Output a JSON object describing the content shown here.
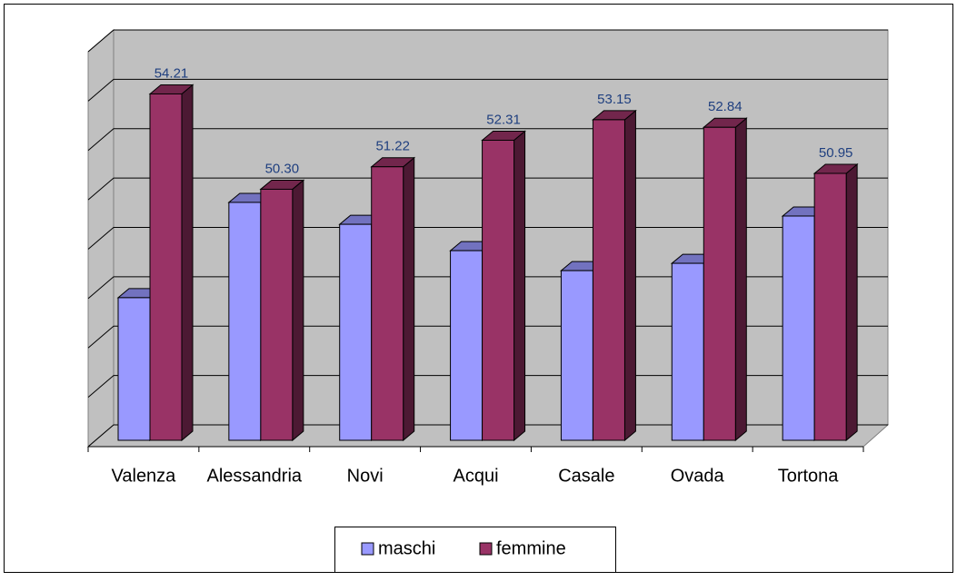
{
  "chart_data": {
    "type": "bar3d",
    "categories": [
      "Valenza",
      "Alessandria",
      "Novi",
      "Acqui",
      "Casale",
      "Ovada",
      "Tortona"
    ],
    "series": [
      {
        "name": "maschi",
        "color": "#9999ff",
        "values": [
          45.85,
          49.76,
          48.86,
          47.78,
          46.96,
          47.26,
          49.2
        ]
      },
      {
        "name": "femmine",
        "color": "#993366",
        "values": [
          54.21,
          50.3,
          51.22,
          52.31,
          53.15,
          52.84,
          50.95
        ],
        "value_labels": [
          "54.21",
          "50.30",
          "51.22",
          "52.31",
          "53.15",
          "52.84",
          "50.95"
        ]
      }
    ],
    "ylim": [
      40,
      56
    ],
    "yticks": [
      40,
      42,
      44,
      46,
      48,
      50,
      52,
      54,
      56
    ],
    "grid": true,
    "legend": "bottom"
  }
}
